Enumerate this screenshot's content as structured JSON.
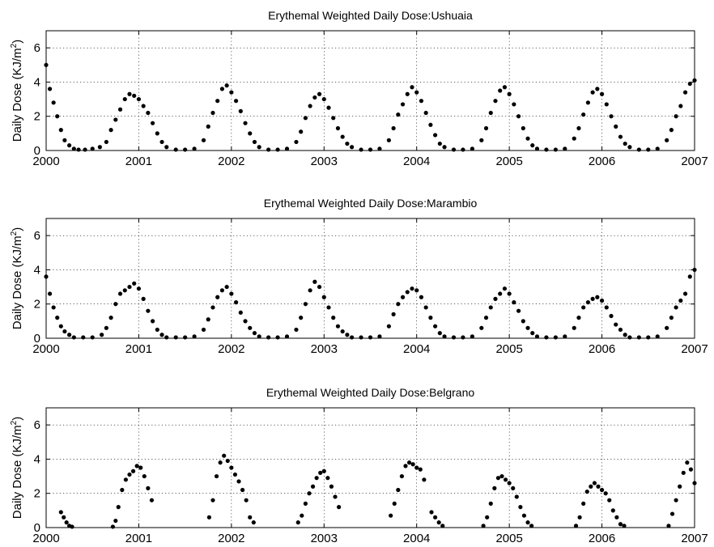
{
  "chart_data": [
    {
      "type": "scatter",
      "title": "Erythemal Weighted Daily Dose:Ushuaia",
      "ylabel": "Daily Dose (KJ/m2)",
      "xlabel": "",
      "xlim": [
        2000,
        2007
      ],
      "ylim": [
        0,
        7
      ],
      "xticks": [
        "2000",
        "2001",
        "2002",
        "2003",
        "2004",
        "2005",
        "2006",
        "2007"
      ],
      "yticks": [
        "0",
        "2",
        "4",
        "6"
      ],
      "grid": true,
      "marker_color": "#000000",
      "series": [
        {
          "x": [
            2000.0,
            2000.04,
            2000.08,
            2000.12,
            2000.16,
            2000.2,
            2000.25,
            2000.3,
            2000.35,
            2000.42,
            2000.5,
            2000.58,
            2000.65,
            2000.7,
            2000.75,
            2000.8,
            2000.85,
            2000.9,
            2000.95,
            2001.0,
            2001.05,
            2001.1,
            2001.15,
            2001.2,
            2001.25,
            2001.3,
            2001.4,
            2001.5,
            2001.6,
            2001.7,
            2001.75,
            2001.8,
            2001.85,
            2001.9,
            2001.95,
            2002.0,
            2002.05,
            2002.1,
            2002.15,
            2002.2,
            2002.25,
            2002.3,
            2002.4,
            2002.5,
            2002.6,
            2002.7,
            2002.75,
            2002.8,
            2002.85,
            2002.9,
            2002.95,
            2003.0,
            2003.05,
            2003.1,
            2003.15,
            2003.2,
            2003.25,
            2003.3,
            2003.4,
            2003.5,
            2003.6,
            2003.7,
            2003.75,
            2003.8,
            2003.85,
            2003.9,
            2003.95,
            2004.0,
            2004.05,
            2004.1,
            2004.15,
            2004.2,
            2004.25,
            2004.3,
            2004.4,
            2004.5,
            2004.6,
            2004.7,
            2004.75,
            2004.8,
            2004.85,
            2004.9,
            2004.95,
            2005.0,
            2005.05,
            2005.1,
            2005.15,
            2005.2,
            2005.25,
            2005.3,
            2005.4,
            2005.5,
            2005.6,
            2005.7,
            2005.75,
            2005.8,
            2005.85,
            2005.9,
            2005.95,
            2006.0,
            2006.05,
            2006.1,
            2006.15,
            2006.2,
            2006.25,
            2006.3,
            2006.4,
            2006.5,
            2006.6,
            2006.7,
            2006.75,
            2006.8,
            2006.85,
            2006.9,
            2006.95,
            2007.0
          ],
          "y": [
            5.0,
            3.6,
            2.8,
            2.0,
            1.2,
            0.6,
            0.3,
            0.1,
            0.05,
            0.05,
            0.1,
            0.2,
            0.5,
            1.2,
            1.8,
            2.4,
            3.0,
            3.3,
            3.2,
            3.0,
            2.6,
            2.2,
            1.6,
            1.0,
            0.5,
            0.2,
            0.05,
            0.05,
            0.1,
            0.6,
            1.4,
            2.2,
            2.9,
            3.6,
            3.8,
            3.4,
            2.9,
            2.3,
            1.6,
            1.0,
            0.5,
            0.2,
            0.05,
            0.05,
            0.1,
            0.5,
            1.1,
            1.9,
            2.6,
            3.1,
            3.3,
            3.0,
            2.5,
            1.9,
            1.3,
            0.8,
            0.4,
            0.2,
            0.05,
            0.05,
            0.1,
            0.6,
            1.3,
            2.1,
            2.7,
            3.3,
            3.7,
            3.4,
            2.9,
            2.2,
            1.5,
            0.9,
            0.4,
            0.2,
            0.05,
            0.05,
            0.1,
            0.6,
            1.3,
            2.2,
            2.9,
            3.5,
            3.7,
            3.3,
            2.7,
            2.0,
            1.3,
            0.7,
            0.3,
            0.1,
            0.05,
            0.05,
            0.1,
            0.7,
            1.3,
            2.1,
            2.8,
            3.4,
            3.6,
            3.3,
            2.7,
            2.0,
            1.4,
            0.8,
            0.4,
            0.2,
            0.05,
            0.05,
            0.1,
            0.6,
            1.2,
            2.0,
            2.6,
            3.4,
            3.9,
            4.1
          ]
        }
      ]
    },
    {
      "type": "scatter",
      "title": "Erythemal Weighted Daily Dose:Marambio",
      "ylabel": "Daily Dose (KJ/m2)",
      "xlabel": "",
      "xlim": [
        2000,
        2007
      ],
      "ylim": [
        0,
        7
      ],
      "xticks": [
        "2000",
        "2001",
        "2002",
        "2003",
        "2004",
        "2005",
        "2006",
        "2007"
      ],
      "yticks": [
        "0",
        "2",
        "4",
        "6"
      ],
      "grid": true,
      "marker_color": "#000000",
      "series": [
        {
          "x": [
            2000.0,
            2000.04,
            2000.08,
            2000.12,
            2000.16,
            2000.2,
            2000.25,
            2000.3,
            2000.4,
            2000.5,
            2000.6,
            2000.65,
            2000.7,
            2000.75,
            2000.8,
            2000.85,
            2000.9,
            2000.95,
            2001.0,
            2001.05,
            2001.1,
            2001.15,
            2001.2,
            2001.25,
            2001.3,
            2001.4,
            2001.5,
            2001.6,
            2001.7,
            2001.75,
            2001.8,
            2001.85,
            2001.9,
            2001.95,
            2002.0,
            2002.05,
            2002.1,
            2002.15,
            2002.2,
            2002.25,
            2002.3,
            2002.4,
            2002.5,
            2002.6,
            2002.7,
            2002.75,
            2002.8,
            2002.85,
            2002.9,
            2002.95,
            2003.0,
            2003.05,
            2003.1,
            2003.15,
            2003.2,
            2003.25,
            2003.3,
            2003.4,
            2003.5,
            2003.6,
            2003.7,
            2003.75,
            2003.8,
            2003.85,
            2003.9,
            2003.95,
            2004.0,
            2004.05,
            2004.1,
            2004.15,
            2004.2,
            2004.25,
            2004.3,
            2004.4,
            2004.5,
            2004.6,
            2004.7,
            2004.75,
            2004.8,
            2004.85,
            2004.9,
            2004.95,
            2005.0,
            2005.05,
            2005.1,
            2005.15,
            2005.2,
            2005.25,
            2005.3,
            2005.4,
            2005.5,
            2005.6,
            2005.7,
            2005.75,
            2005.8,
            2005.85,
            2005.9,
            2005.95,
            2006.0,
            2006.05,
            2006.1,
            2006.15,
            2006.2,
            2006.25,
            2006.3,
            2006.4,
            2006.5,
            2006.6,
            2006.7,
            2006.75,
            2006.8,
            2006.85,
            2006.9,
            2006.95,
            2007.0
          ],
          "y": [
            3.6,
            2.6,
            1.8,
            1.2,
            0.7,
            0.4,
            0.2,
            0.05,
            0.05,
            0.05,
            0.2,
            0.6,
            1.2,
            2.0,
            2.6,
            2.8,
            3.0,
            3.2,
            2.9,
            2.3,
            1.6,
            1.0,
            0.5,
            0.2,
            0.05,
            0.05,
            0.05,
            0.1,
            0.5,
            1.1,
            1.8,
            2.4,
            2.8,
            3.0,
            2.6,
            2.1,
            1.5,
            1.0,
            0.6,
            0.3,
            0.1,
            0.05,
            0.05,
            0.1,
            0.5,
            1.2,
            2.0,
            2.8,
            3.3,
            3.0,
            2.4,
            1.8,
            1.2,
            0.7,
            0.4,
            0.2,
            0.05,
            0.05,
            0.05,
            0.1,
            0.7,
            1.4,
            2.0,
            2.4,
            2.7,
            2.9,
            2.8,
            2.4,
            1.8,
            1.2,
            0.7,
            0.3,
            0.1,
            0.05,
            0.05,
            0.1,
            0.6,
            1.2,
            1.8,
            2.3,
            2.6,
            2.9,
            2.6,
            2.1,
            1.6,
            1.0,
            0.6,
            0.3,
            0.1,
            0.05,
            0.05,
            0.1,
            0.6,
            1.2,
            1.8,
            2.1,
            2.3,
            2.4,
            2.2,
            1.8,
            1.3,
            0.8,
            0.5,
            0.2,
            0.05,
            0.05,
            0.05,
            0.1,
            0.6,
            1.2,
            1.8,
            2.2,
            2.6,
            3.6,
            4.0
          ]
        }
      ]
    },
    {
      "type": "scatter",
      "title": "Erythemal Weighted Daily Dose:Belgrano",
      "ylabel": "Daily Dose (KJ/m2)",
      "xlabel": "",
      "xlim": [
        2000,
        2007
      ],
      "ylim": [
        0,
        7
      ],
      "xticks": [
        "2000",
        "2001",
        "2002",
        "2003",
        "2004",
        "2005",
        "2006",
        "2007"
      ],
      "yticks": [
        "0",
        "2",
        "4",
        "6"
      ],
      "grid": true,
      "marker_color": "#000000",
      "series": [
        {
          "x": [
            2000.16,
            2000.19,
            2000.22,
            2000.25,
            2000.28,
            2000.72,
            2000.75,
            2000.78,
            2000.82,
            2000.86,
            2000.9,
            2000.94,
            2000.98,
            2001.02,
            2001.06,
            2001.1,
            2001.14,
            2001.76,
            2001.8,
            2001.84,
            2001.88,
            2001.92,
            2001.96,
            2002.0,
            2002.04,
            2002.08,
            2002.12,
            2002.16,
            2002.2,
            2002.24,
            2002.72,
            2002.76,
            2002.8,
            2002.84,
            2002.88,
            2002.92,
            2002.96,
            2003.0,
            2003.04,
            2003.08,
            2003.12,
            2003.16,
            2003.72,
            2003.76,
            2003.8,
            2003.84,
            2003.88,
            2003.92,
            2003.96,
            2004.0,
            2004.04,
            2004.08,
            2004.16,
            2004.2,
            2004.24,
            2004.28,
            2004.72,
            2004.76,
            2004.8,
            2004.84,
            2004.88,
            2004.92,
            2004.96,
            2005.0,
            2005.04,
            2005.08,
            2005.12,
            2005.16,
            2005.2,
            2005.24,
            2005.72,
            2005.76,
            2005.8,
            2005.84,
            2005.88,
            2005.92,
            2005.96,
            2006.0,
            2006.04,
            2006.08,
            2006.12,
            2006.16,
            2006.2,
            2006.24,
            2006.72,
            2006.76,
            2006.8,
            2006.84,
            2006.88,
            2006.92,
            2006.96,
            2007.0
          ],
          "y": [
            0.9,
            0.6,
            0.3,
            0.1,
            0.05,
            0.05,
            0.4,
            1.2,
            2.2,
            2.8,
            3.1,
            3.3,
            3.6,
            3.5,
            3.0,
            2.3,
            1.6,
            0.6,
            1.6,
            3.0,
            3.8,
            4.2,
            3.9,
            3.5,
            3.1,
            2.7,
            2.2,
            1.6,
            0.6,
            0.3,
            0.3,
            0.7,
            1.4,
            2.0,
            2.4,
            2.9,
            3.2,
            3.3,
            2.9,
            2.4,
            1.8,
            1.2,
            0.7,
            1.4,
            2.2,
            3.0,
            3.6,
            3.8,
            3.7,
            3.5,
            3.4,
            2.8,
            0.9,
            0.6,
            0.3,
            0.1,
            0.1,
            0.6,
            1.4,
            2.3,
            2.9,
            3.0,
            2.8,
            2.6,
            2.3,
            1.8,
            1.2,
            0.7,
            0.3,
            0.1,
            0.1,
            0.6,
            1.4,
            2.1,
            2.4,
            2.6,
            2.4,
            2.2,
            2.0,
            1.6,
            1.0,
            0.6,
            0.2,
            0.1,
            0.1,
            0.8,
            1.6,
            2.4,
            3.2,
            3.8,
            3.4,
            2.6
          ]
        }
      ]
    }
  ]
}
